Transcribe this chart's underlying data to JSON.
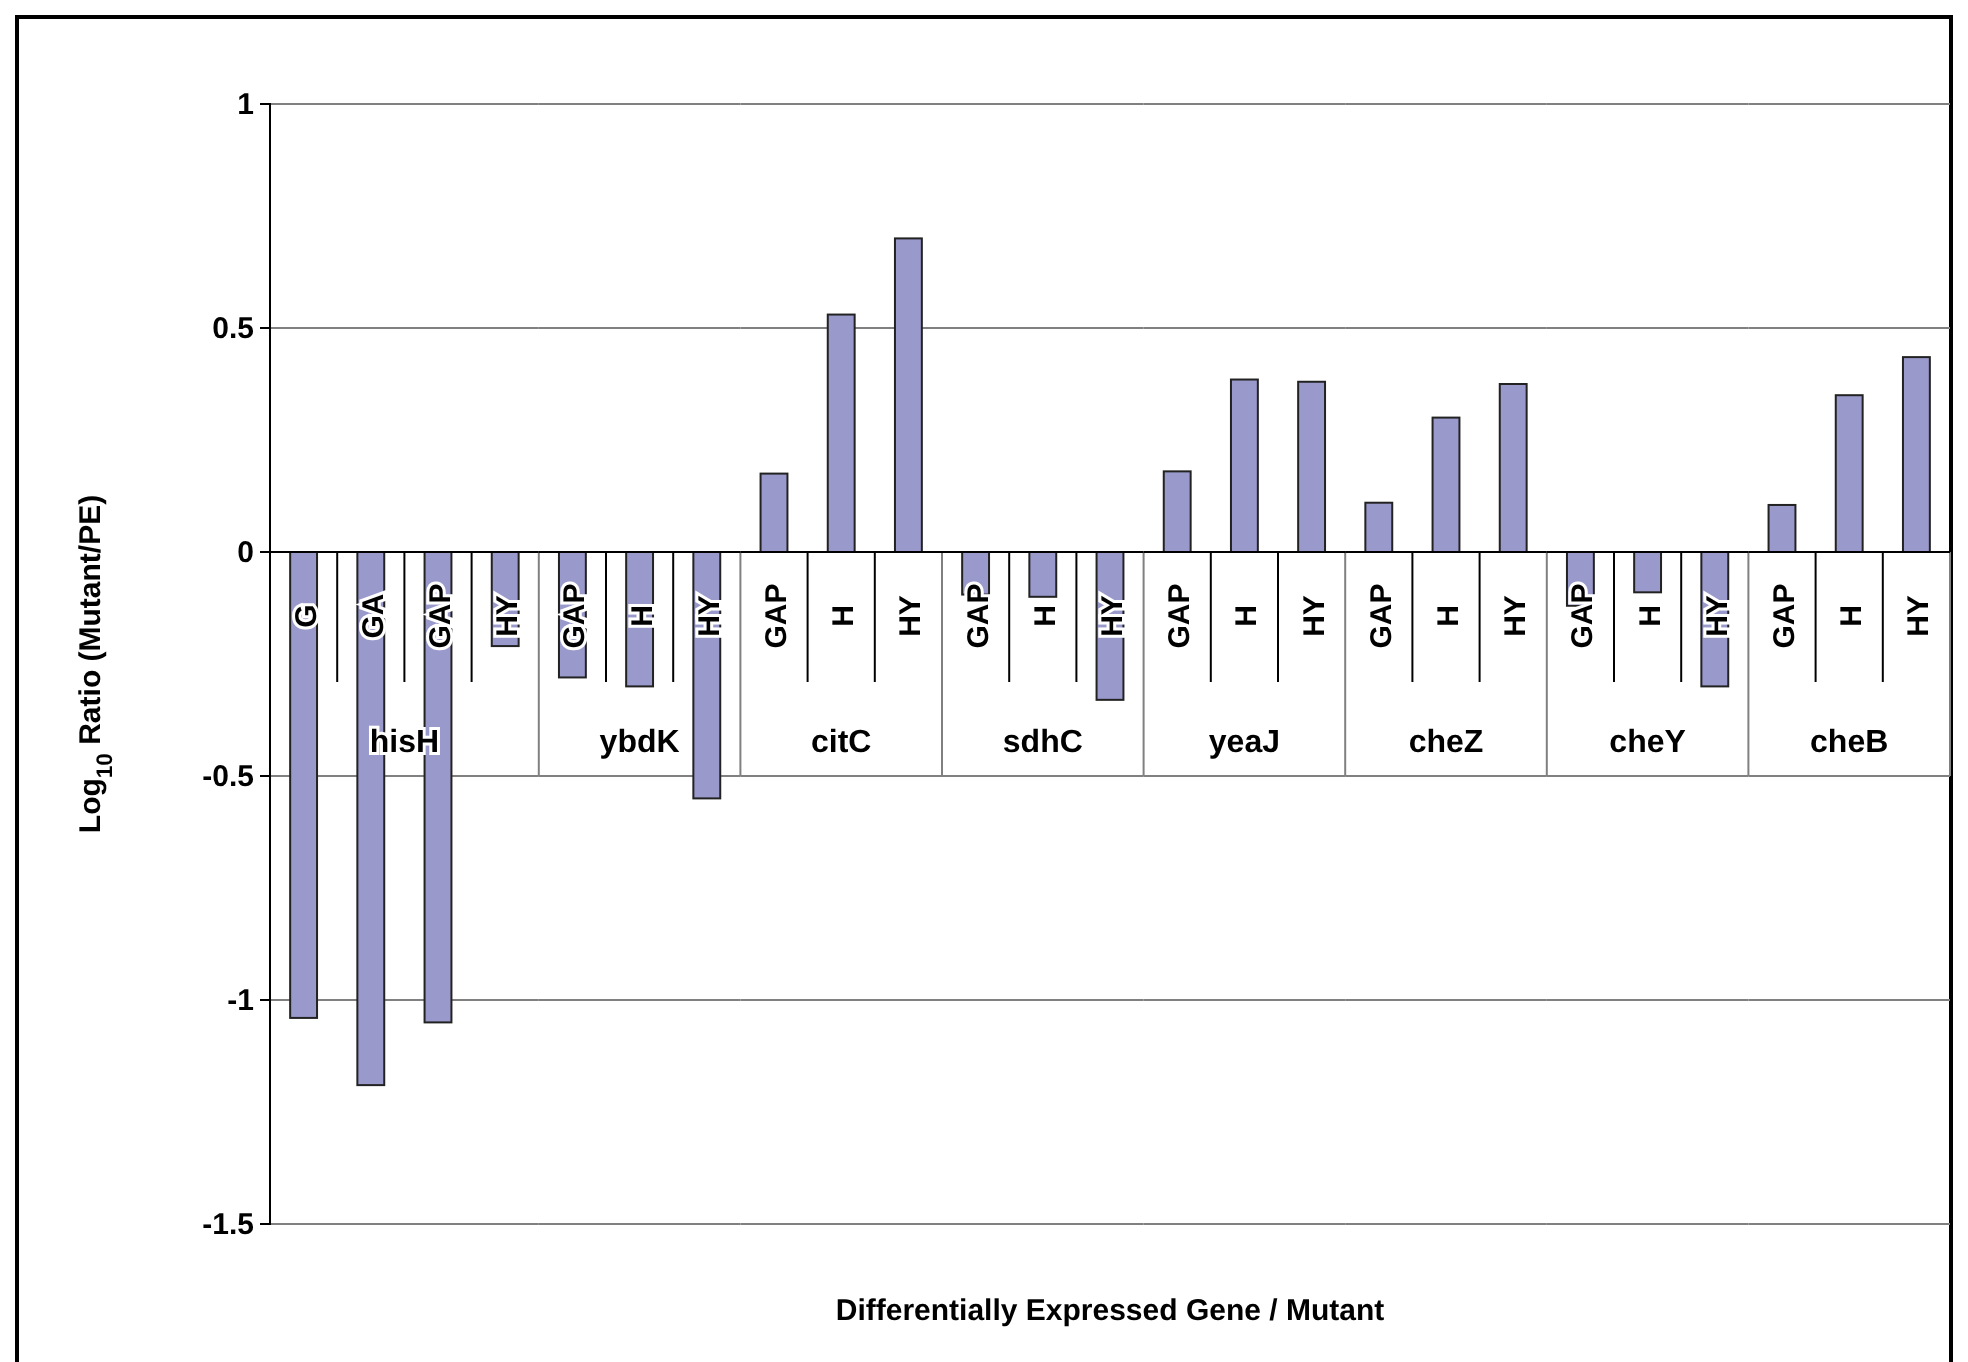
{
  "chart_data": [
    {
      "type": "bar",
      "categories": [
        "G",
        "GA",
        "GAP",
        "HY"
      ],
      "values": [
        -1.04,
        -1.19,
        -1.05,
        -0.21
      ],
      "color": "#9999cc",
      "xlabel": "hisH",
      "ylabel": "Log$_{10}$ Ratio (Mutant/PE)",
      "ylim": [
        -1.5,
        1
      ],
      "yticks": [
        -1.5,
        -1,
        -0.5,
        0,
        0.5,
        1
      ],
      "grid": "y",
      "annotations": [
        "Differentially Expressed Gene / Mutant"
      ]
    },
    {
      "type": "bar",
      "categories": [
        "GAP",
        "H",
        "HY"
      ],
      "values": [
        -0.28,
        -0.3,
        -0.55
      ],
      "color": "#9999cc",
      "xlabel": "ybdK",
      "ylim": [
        -1.5,
        1
      ],
      "yticks": [
        -1.5,
        -1,
        -0.5,
        0,
        0.5,
        1
      ],
      "grid": "y",
      "tick_labels": "x"
    },
    {
      "type": "bar",
      "categories": [
        "GAP",
        "H",
        "HY"
      ],
      "values": [
        0.175,
        0.53,
        0.7
      ],
      "color": "#9999cc",
      "xlabel": "citC",
      "ylim": [
        -1.5,
        1
      ],
      "yticks": [
        -1.5,
        -1,
        -0.5,
        0,
        0.5,
        1
      ],
      "grid": "y",
      "tick_labels": "x"
    },
    {
      "type": "bar",
      "categories": [
        "GAP",
        "H",
        "HY"
      ],
      "values": [
        -0.095,
        -0.1,
        -0.33
      ],
      "color": "#9999cc",
      "xlabel": "sdhC",
      "ylim": [
        -1.5,
        1
      ],
      "yticks": [
        -1.5,
        -1,
        -0.5,
        0,
        0.5,
        1
      ],
      "grid": "y",
      "tick_labels": "x"
    },
    {
      "type": "bar",
      "categories": [
        "GAP",
        "H",
        "HY"
      ],
      "values": [
        0.18,
        0.385,
        0.38
      ],
      "color": "#9999cc",
      "xlabel": "yeaJ",
      "ylim": [
        -1.5,
        1
      ],
      "yticks": [
        -1.5,
        -1,
        -0.5,
        0,
        0.5,
        1
      ],
      "grid": "y",
      "tick_labels": "x"
    },
    {
      "type": "bar",
      "categories": [
        "GAP",
        "H",
        "HY"
      ],
      "values": [
        0.11,
        0.3,
        0.375
      ],
      "color": "#9999cc",
      "xlabel": "cheZ",
      "ylim": [
        -1.5,
        1
      ],
      "yticks": [
        -1.5,
        -1,
        -0.5,
        0,
        0.5,
        1
      ],
      "grid": "y",
      "tick_labels": "x"
    },
    {
      "type": "bar",
      "categories": [
        "GAP",
        "H",
        "HY"
      ],
      "values": [
        -0.12,
        -0.09,
        -0.3
      ],
      "color": "#9999cc",
      "xlabel": "cheY",
      "ylim": [
        -1.5,
        1
      ],
      "yticks": [
        -1.5,
        -1,
        -0.5,
        0,
        0.5,
        1
      ],
      "grid": "y",
      "tick_labels": "x"
    },
    {
      "type": "bar",
      "categories": [
        "GAP",
        "H",
        "HY"
      ],
      "values": [
        0.105,
        0.35,
        0.435
      ],
      "color": "#9999cc",
      "xlabel": "cheB",
      "ylim": [
        -1.5,
        1
      ],
      "yticks": [
        -1.5,
        -1,
        -0.5,
        0,
        0.5,
        1
      ],
      "grid": "y",
      "tick_labels": "x"
    }
  ]
}
